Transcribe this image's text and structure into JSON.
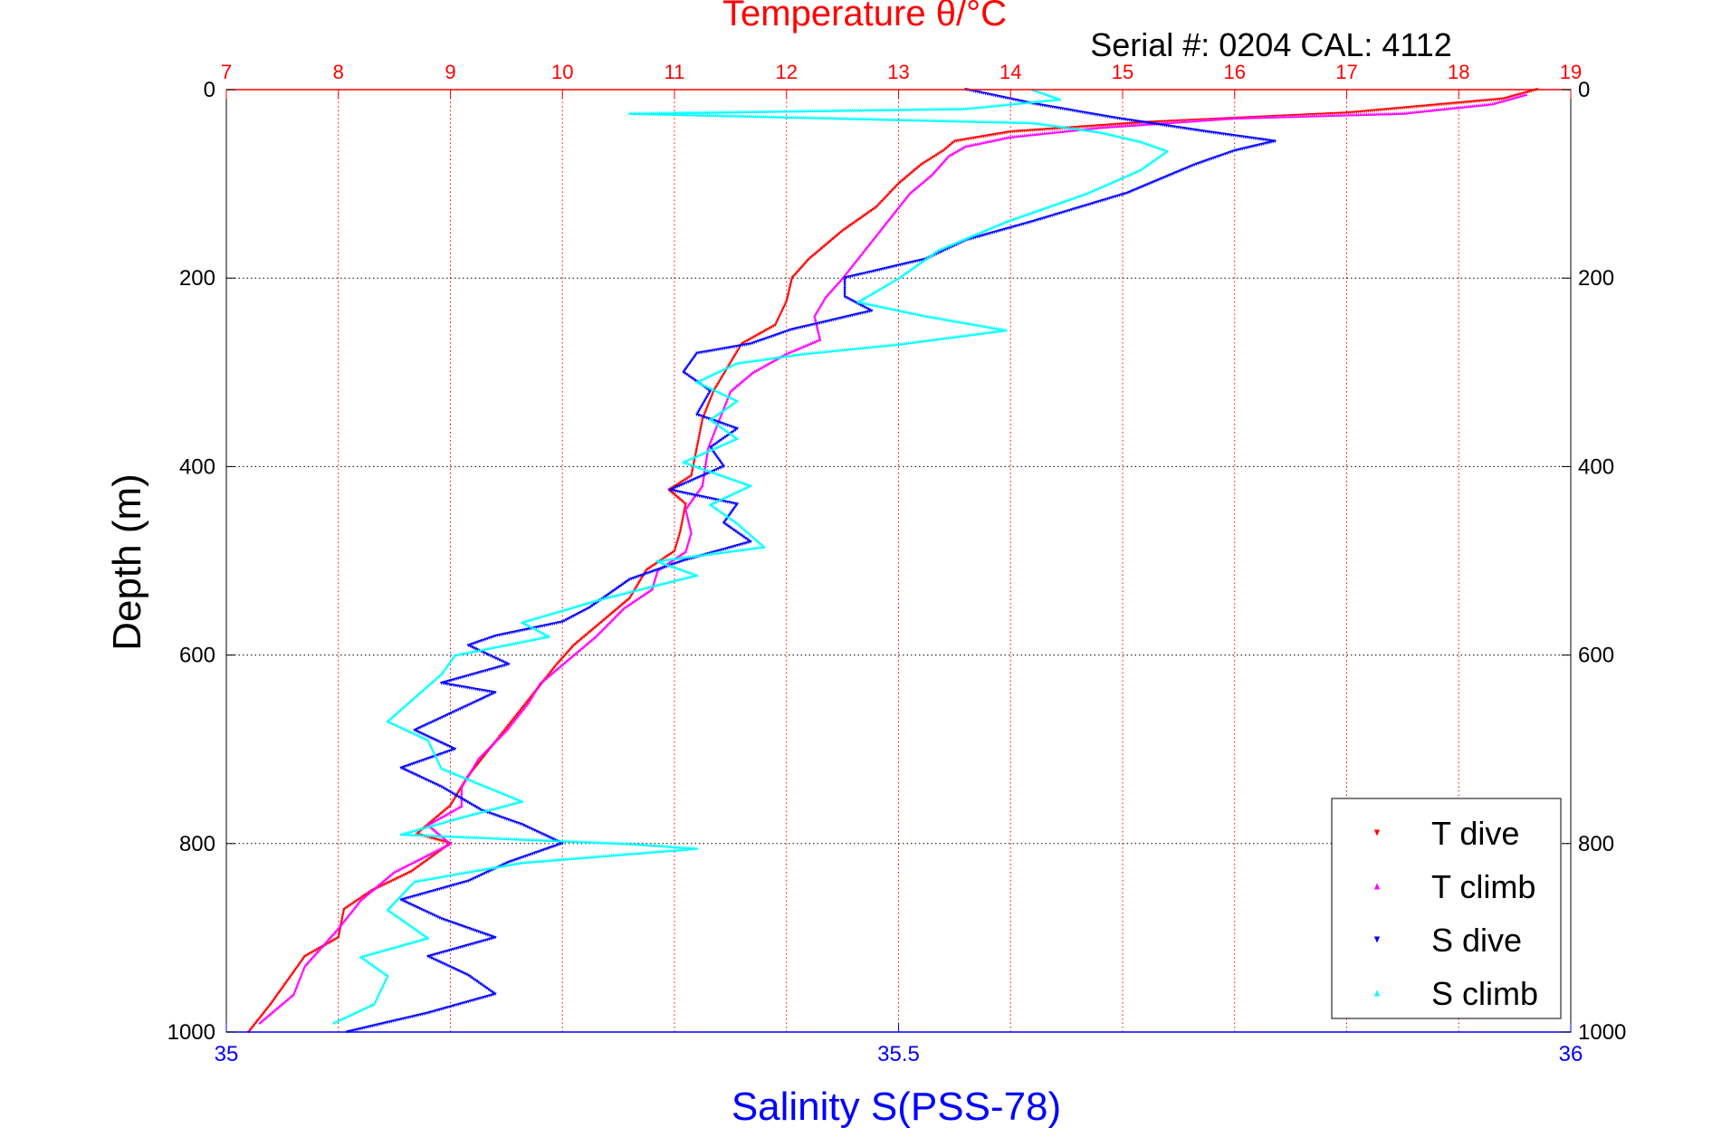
{
  "chart_data": {
    "type": "scatter",
    "title": "Temperature θ/°C",
    "subtitle": "Serial #: 0204  CAL: 4112",
    "xlabel": "Salinity S(PSS-78)",
    "ylabel": "Depth (m)",
    "top_axis": {
      "label": "Temperature θ/°C",
      "range": [
        7,
        19
      ],
      "ticks": [
        "7",
        "8",
        "9",
        "10",
        "11",
        "12",
        "13",
        "14",
        "15",
        "16",
        "17",
        "18",
        "19"
      ]
    },
    "bottom_axis": {
      "label": "Salinity S(PSS-78)",
      "range": [
        35,
        36
      ],
      "ticks": [
        "35",
        "35.5",
        "36"
      ]
    },
    "y_axis": {
      "label": "Depth (m)",
      "range": [
        0,
        1000
      ],
      "reversed": true,
      "ticks": [
        "0",
        "200",
        "400",
        "600",
        "800",
        "1000"
      ]
    },
    "grid": true,
    "legend_position": "bottom-right",
    "series": [
      {
        "name": "T dive",
        "axis": "temperature",
        "color": "#ff0000",
        "marker": "triangle-down",
        "points": [
          [
            18.7,
            0
          ],
          [
            18.4,
            10
          ],
          [
            17.0,
            25
          ],
          [
            15.2,
            35
          ],
          [
            14.0,
            45
          ],
          [
            13.5,
            55
          ],
          [
            13.4,
            65
          ],
          [
            13.2,
            80
          ],
          [
            13.0,
            100
          ],
          [
            12.8,
            125
          ],
          [
            12.5,
            150
          ],
          [
            12.2,
            180
          ],
          [
            12.05,
            200
          ],
          [
            12.0,
            225
          ],
          [
            11.9,
            250
          ],
          [
            11.6,
            270
          ],
          [
            11.5,
            290
          ],
          [
            11.35,
            320
          ],
          [
            11.25,
            350
          ],
          [
            11.2,
            380
          ],
          [
            11.15,
            410
          ],
          [
            10.95,
            425
          ],
          [
            11.1,
            440
          ],
          [
            11.05,
            470
          ],
          [
            11.0,
            490
          ],
          [
            10.75,
            510
          ],
          [
            10.6,
            540
          ],
          [
            10.4,
            560
          ],
          [
            10.1,
            590
          ],
          [
            9.95,
            610
          ],
          [
            9.75,
            640
          ],
          [
            9.55,
            670
          ],
          [
            9.35,
            700
          ],
          [
            9.15,
            730
          ],
          [
            9.0,
            760
          ],
          [
            8.7,
            790
          ],
          [
            9.0,
            800
          ],
          [
            8.65,
            830
          ],
          [
            8.3,
            850
          ],
          [
            8.05,
            870
          ],
          [
            8.0,
            900
          ],
          [
            7.7,
            920
          ],
          [
            7.55,
            945
          ],
          [
            7.4,
            970
          ],
          [
            7.2,
            1000
          ]
        ]
      },
      {
        "name": "T climb",
        "axis": "temperature",
        "color": "#ff00ff",
        "marker": "triangle-up",
        "points": [
          [
            18.6,
            5
          ],
          [
            18.3,
            15
          ],
          [
            17.5,
            25
          ],
          [
            16.0,
            30
          ],
          [
            14.8,
            40
          ],
          [
            14.0,
            50
          ],
          [
            13.6,
            60
          ],
          [
            13.45,
            70
          ],
          [
            13.3,
            90
          ],
          [
            13.1,
            110
          ],
          [
            12.9,
            140
          ],
          [
            12.7,
            170
          ],
          [
            12.5,
            200
          ],
          [
            12.35,
            220
          ],
          [
            12.25,
            240
          ],
          [
            12.3,
            265
          ],
          [
            12.0,
            280
          ],
          [
            11.7,
            300
          ],
          [
            11.5,
            320
          ],
          [
            11.4,
            350
          ],
          [
            11.3,
            380
          ],
          [
            11.25,
            420
          ],
          [
            11.1,
            445
          ],
          [
            11.15,
            470
          ],
          [
            11.1,
            490
          ],
          [
            10.85,
            510
          ],
          [
            10.8,
            530
          ],
          [
            10.55,
            550
          ],
          [
            10.3,
            580
          ],
          [
            10.1,
            600
          ],
          [
            9.8,
            630
          ],
          [
            9.7,
            650
          ],
          [
            9.5,
            680
          ],
          [
            9.25,
            710
          ],
          [
            9.1,
            740
          ],
          [
            9.1,
            760
          ],
          [
            8.8,
            780
          ],
          [
            9.0,
            800
          ],
          [
            8.5,
            830
          ],
          [
            8.2,
            860
          ],
          [
            8.0,
            890
          ],
          [
            7.85,
            910
          ],
          [
            7.7,
            930
          ],
          [
            7.6,
            960
          ],
          [
            7.3,
            990
          ]
        ]
      },
      {
        "name": "S dive",
        "axis": "salinity",
        "color": "#0000ff",
        "marker": "triangle-down",
        "points": [
          [
            35.55,
            0
          ],
          [
            35.6,
            15
          ],
          [
            35.66,
            30
          ],
          [
            35.73,
            45
          ],
          [
            35.78,
            55
          ],
          [
            35.75,
            65
          ],
          [
            35.72,
            80
          ],
          [
            35.67,
            110
          ],
          [
            35.6,
            140
          ],
          [
            35.55,
            160
          ],
          [
            35.52,
            180
          ],
          [
            35.46,
            200
          ],
          [
            35.46,
            220
          ],
          [
            35.48,
            235
          ],
          [
            35.42,
            255
          ],
          [
            35.39,
            270
          ],
          [
            35.35,
            280
          ],
          [
            35.34,
            300
          ],
          [
            35.36,
            320
          ],
          [
            35.35,
            345
          ],
          [
            35.38,
            360
          ],
          [
            35.36,
            380
          ],
          [
            35.37,
            400
          ],
          [
            35.33,
            425
          ],
          [
            35.38,
            440
          ],
          [
            35.37,
            460
          ],
          [
            35.39,
            480
          ],
          [
            35.34,
            500
          ],
          [
            35.3,
            520
          ],
          [
            35.27,
            550
          ],
          [
            35.25,
            565
          ],
          [
            35.2,
            580
          ],
          [
            35.18,
            590
          ],
          [
            35.21,
            610
          ],
          [
            35.16,
            630
          ],
          [
            35.2,
            640
          ],
          [
            35.17,
            660
          ],
          [
            35.14,
            680
          ],
          [
            35.17,
            700
          ],
          [
            35.13,
            720
          ],
          [
            35.16,
            740
          ],
          [
            35.19,
            765
          ],
          [
            35.22,
            780
          ],
          [
            35.25,
            800
          ],
          [
            35.21,
            820
          ],
          [
            35.18,
            840
          ],
          [
            35.13,
            860
          ],
          [
            35.16,
            880
          ],
          [
            35.2,
            900
          ],
          [
            35.15,
            920
          ],
          [
            35.18,
            940
          ],
          [
            35.2,
            960
          ],
          [
            35.15,
            980
          ],
          [
            35.09,
            1000
          ]
        ]
      },
      {
        "name": "S climb",
        "axis": "salinity",
        "color": "#00ffff",
        "marker": "triangle-up",
        "points": [
          [
            35.6,
            0
          ],
          [
            35.62,
            10
          ],
          [
            35.55,
            20
          ],
          [
            35.3,
            25
          ],
          [
            35.45,
            30
          ],
          [
            35.6,
            35
          ],
          [
            35.65,
            45
          ],
          [
            35.68,
            55
          ],
          [
            35.7,
            65
          ],
          [
            35.68,
            85
          ],
          [
            35.64,
            110
          ],
          [
            35.58,
            140
          ],
          [
            35.53,
            170
          ],
          [
            35.5,
            200
          ],
          [
            35.47,
            225
          ],
          [
            35.52,
            240
          ],
          [
            35.58,
            255
          ],
          [
            35.5,
            270
          ],
          [
            35.43,
            280
          ],
          [
            35.38,
            290
          ],
          [
            35.35,
            310
          ],
          [
            35.38,
            330
          ],
          [
            35.36,
            350
          ],
          [
            35.38,
            370
          ],
          [
            35.34,
            395
          ],
          [
            35.39,
            420
          ],
          [
            35.36,
            440
          ],
          [
            35.38,
            460
          ],
          [
            35.4,
            485
          ],
          [
            35.32,
            500
          ],
          [
            35.35,
            515
          ],
          [
            35.28,
            540
          ],
          [
            35.22,
            565
          ],
          [
            35.24,
            580
          ],
          [
            35.17,
            600
          ],
          [
            35.16,
            620
          ],
          [
            35.14,
            645
          ],
          [
            35.12,
            670
          ],
          [
            35.15,
            690
          ],
          [
            35.16,
            720
          ],
          [
            35.22,
            755
          ],
          [
            35.18,
            770
          ],
          [
            35.13,
            790
          ],
          [
            35.3,
            800
          ],
          [
            35.35,
            805
          ],
          [
            35.22,
            820
          ],
          [
            35.14,
            840
          ],
          [
            35.12,
            870
          ],
          [
            35.15,
            900
          ],
          [
            35.1,
            920
          ],
          [
            35.12,
            940
          ],
          [
            35.11,
            970
          ],
          [
            35.08,
            990
          ]
        ]
      }
    ]
  }
}
